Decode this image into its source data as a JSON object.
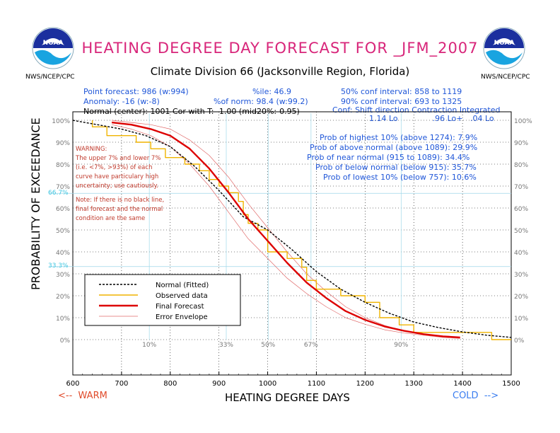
{
  "header": {
    "title": "HEATING DEGREE DAY FORECAST FOR _JFM_2007",
    "subtitle": "Climate Division 66 (Jacksonville Region, Florida)",
    "agency_left": "NWS/NCEP/CPC",
    "agency_right": "NWS/NCEP/CPC",
    "logo_text": "NOAA"
  },
  "info": {
    "point_forecast": "Point forecast: 986 (w:994)",
    "pctile": "%ile: 46.9",
    "anomaly": "Anomaly: -16 (w:-8)",
    "pct_norm": "%of norm: 98.4 (w:99.2)",
    "normal": "Normal (center): 1001 Cor with T: -1.00 (mid20%:-0.95)",
    "conf50": "50% conf interval: 858 to 1119",
    "conf90": "90% conf interval: 693 to 1325",
    "conf_header": "Conf: Shift direction  Contraction  Integrated",
    "conf_values": "1.14 Lo              .96 Lo+   .04 Lo"
  },
  "probabilities": [
    "Prob of highest 10% (above 1274): 7.9%",
    "Prob of above normal (above 1089): 29.9%",
    "Prob of near normal (915 to 1089): 34.4%",
    "Prob of below normal (below 915): 35.7%",
    "Prob of lowest 10% (below 757): 10.6%"
  ],
  "warning": {
    "heading": "WARNING:",
    "lines": [
      "The upper 7% and lower 7%",
      "(i.e. <7%, >93%) of each",
      "curve have particulary high",
      "uncertainty; use cautiously."
    ]
  },
  "note": {
    "lines": [
      "Note: If there is no black line,",
      "final forecast and  the normal",
      "condition are the same"
    ]
  },
  "axes": {
    "ylabel": "PROBABILITY OF EXCEEDANCE",
    "xlabel": "HEATING DEGREE DAYS",
    "warm": "<--  WARM",
    "cold": "COLD  -->",
    "cyan_upper": "66.7%",
    "cyan_lower": "33.3%"
  },
  "colors": {
    "title": "#d8257a",
    "info_blue": "#1f56d8",
    "forecast": "#dd0000",
    "envelope": "#e06a6a",
    "observed": "#f0b400",
    "normal": "#000000",
    "guide": "#9fd8ea"
  },
  "chart_data": {
    "type": "line",
    "xlim": [
      600,
      1500
    ],
    "ylim": [
      0,
      100
    ],
    "x_ticks": [
      600,
      700,
      800,
      900,
      1000,
      1100,
      1200,
      1300,
      1400,
      1500
    ],
    "y_ticks": [
      "0%",
      "10%",
      "20%",
      "30%",
      "40%",
      "50%",
      "60%",
      "70%",
      "80%",
      "90%",
      "100%"
    ],
    "percentile_markers": [
      {
        "label": "10%",
        "x": 757
      },
      {
        "label": "33%",
        "x": 915
      },
      {
        "label": "50%",
        "x": 1001
      },
      {
        "label": "67%",
        "x": 1089
      },
      {
        "label": "90%",
        "x": 1274
      }
    ],
    "legend": [
      "Normal (Fitted)",
      "Observed data",
      "Final Forecast",
      "Error Envelope"
    ],
    "legend_position": "bottom-left",
    "series": [
      {
        "name": "Normal (Fitted)",
        "x": [
          600,
          650,
          700,
          750,
          800,
          850,
          900,
          950,
          1000,
          1050,
          1100,
          1150,
          1200,
          1250,
          1300,
          1350,
          1400,
          1450,
          1500
        ],
        "y": [
          100,
          98,
          96,
          93,
          88,
          79,
          68,
          56,
          50,
          41,
          31,
          23,
          17,
          12,
          8,
          5.5,
          3.5,
          2,
          1
        ]
      },
      {
        "name": "Observed data",
        "x": [
          640,
          640,
          670,
          670,
          730,
          730,
          760,
          760,
          790,
          790,
          830,
          830,
          860,
          860,
          880,
          880,
          900,
          900,
          920,
          920,
          940,
          940,
          950,
          950,
          960,
          960,
          980,
          980,
          1000,
          1000,
          1040,
          1040,
          1070,
          1070,
          1080,
          1080,
          1100,
          1100,
          1150,
          1150,
          1200,
          1200,
          1230,
          1230,
          1270,
          1270,
          1300,
          1300,
          1370,
          1370,
          1460,
          1460,
          1500
        ],
        "y": [
          100,
          97,
          97,
          93,
          93,
          90,
          90,
          87,
          87,
          83,
          83,
          80,
          80,
          77,
          77,
          73,
          73,
          70,
          70,
          67,
          67,
          63,
          63,
          57,
          57,
          53,
          53,
          50,
          50,
          40,
          40,
          37,
          37,
          33,
          33,
          27,
          27,
          23,
          23,
          20,
          20,
          17,
          17,
          10,
          10,
          6.7,
          6.7,
          3.3,
          3.3,
          3.3,
          3.3,
          0,
          0
        ]
      },
      {
        "name": "Final Forecast",
        "x": [
          680,
          720,
          760,
          800,
          840,
          880,
          920,
          960,
          1000,
          1040,
          1080,
          1120,
          1160,
          1200,
          1240,
          1280,
          1320,
          1360,
          1395
        ],
        "y": [
          99,
          98,
          96,
          93,
          87,
          78,
          67,
          55,
          45,
          35,
          26,
          19,
          13,
          9,
          6,
          4,
          2.5,
          1.5,
          1
        ]
      },
      {
        "name": "Error Envelope",
        "x": [
          680,
          720,
          760,
          800,
          840,
          880,
          920,
          960,
          1000,
          1040,
          1080,
          1120,
          1160,
          1200,
          1240,
          1280,
          1320,
          1360,
          1395
        ],
        "y": [
          100,
          99,
          98,
          96,
          91,
          84,
          74,
          62,
          51,
          40,
          30,
          22,
          15,
          10,
          6.5,
          4,
          2.5,
          1.5,
          1
        ]
      },
      {
        "name": "Error Envelope",
        "x": [
          680,
          720,
          760,
          800,
          840,
          880,
          920,
          960,
          1000,
          1040,
          1080,
          1120,
          1160,
          1200,
          1240,
          1280,
          1320,
          1360,
          1395
        ],
        "y": [
          98,
          96,
          93,
          88,
          80,
          70,
          58,
          46,
          37,
          28,
          21,
          15,
          10,
          7,
          4.5,
          3,
          2,
          1,
          0.5
        ]
      }
    ]
  }
}
